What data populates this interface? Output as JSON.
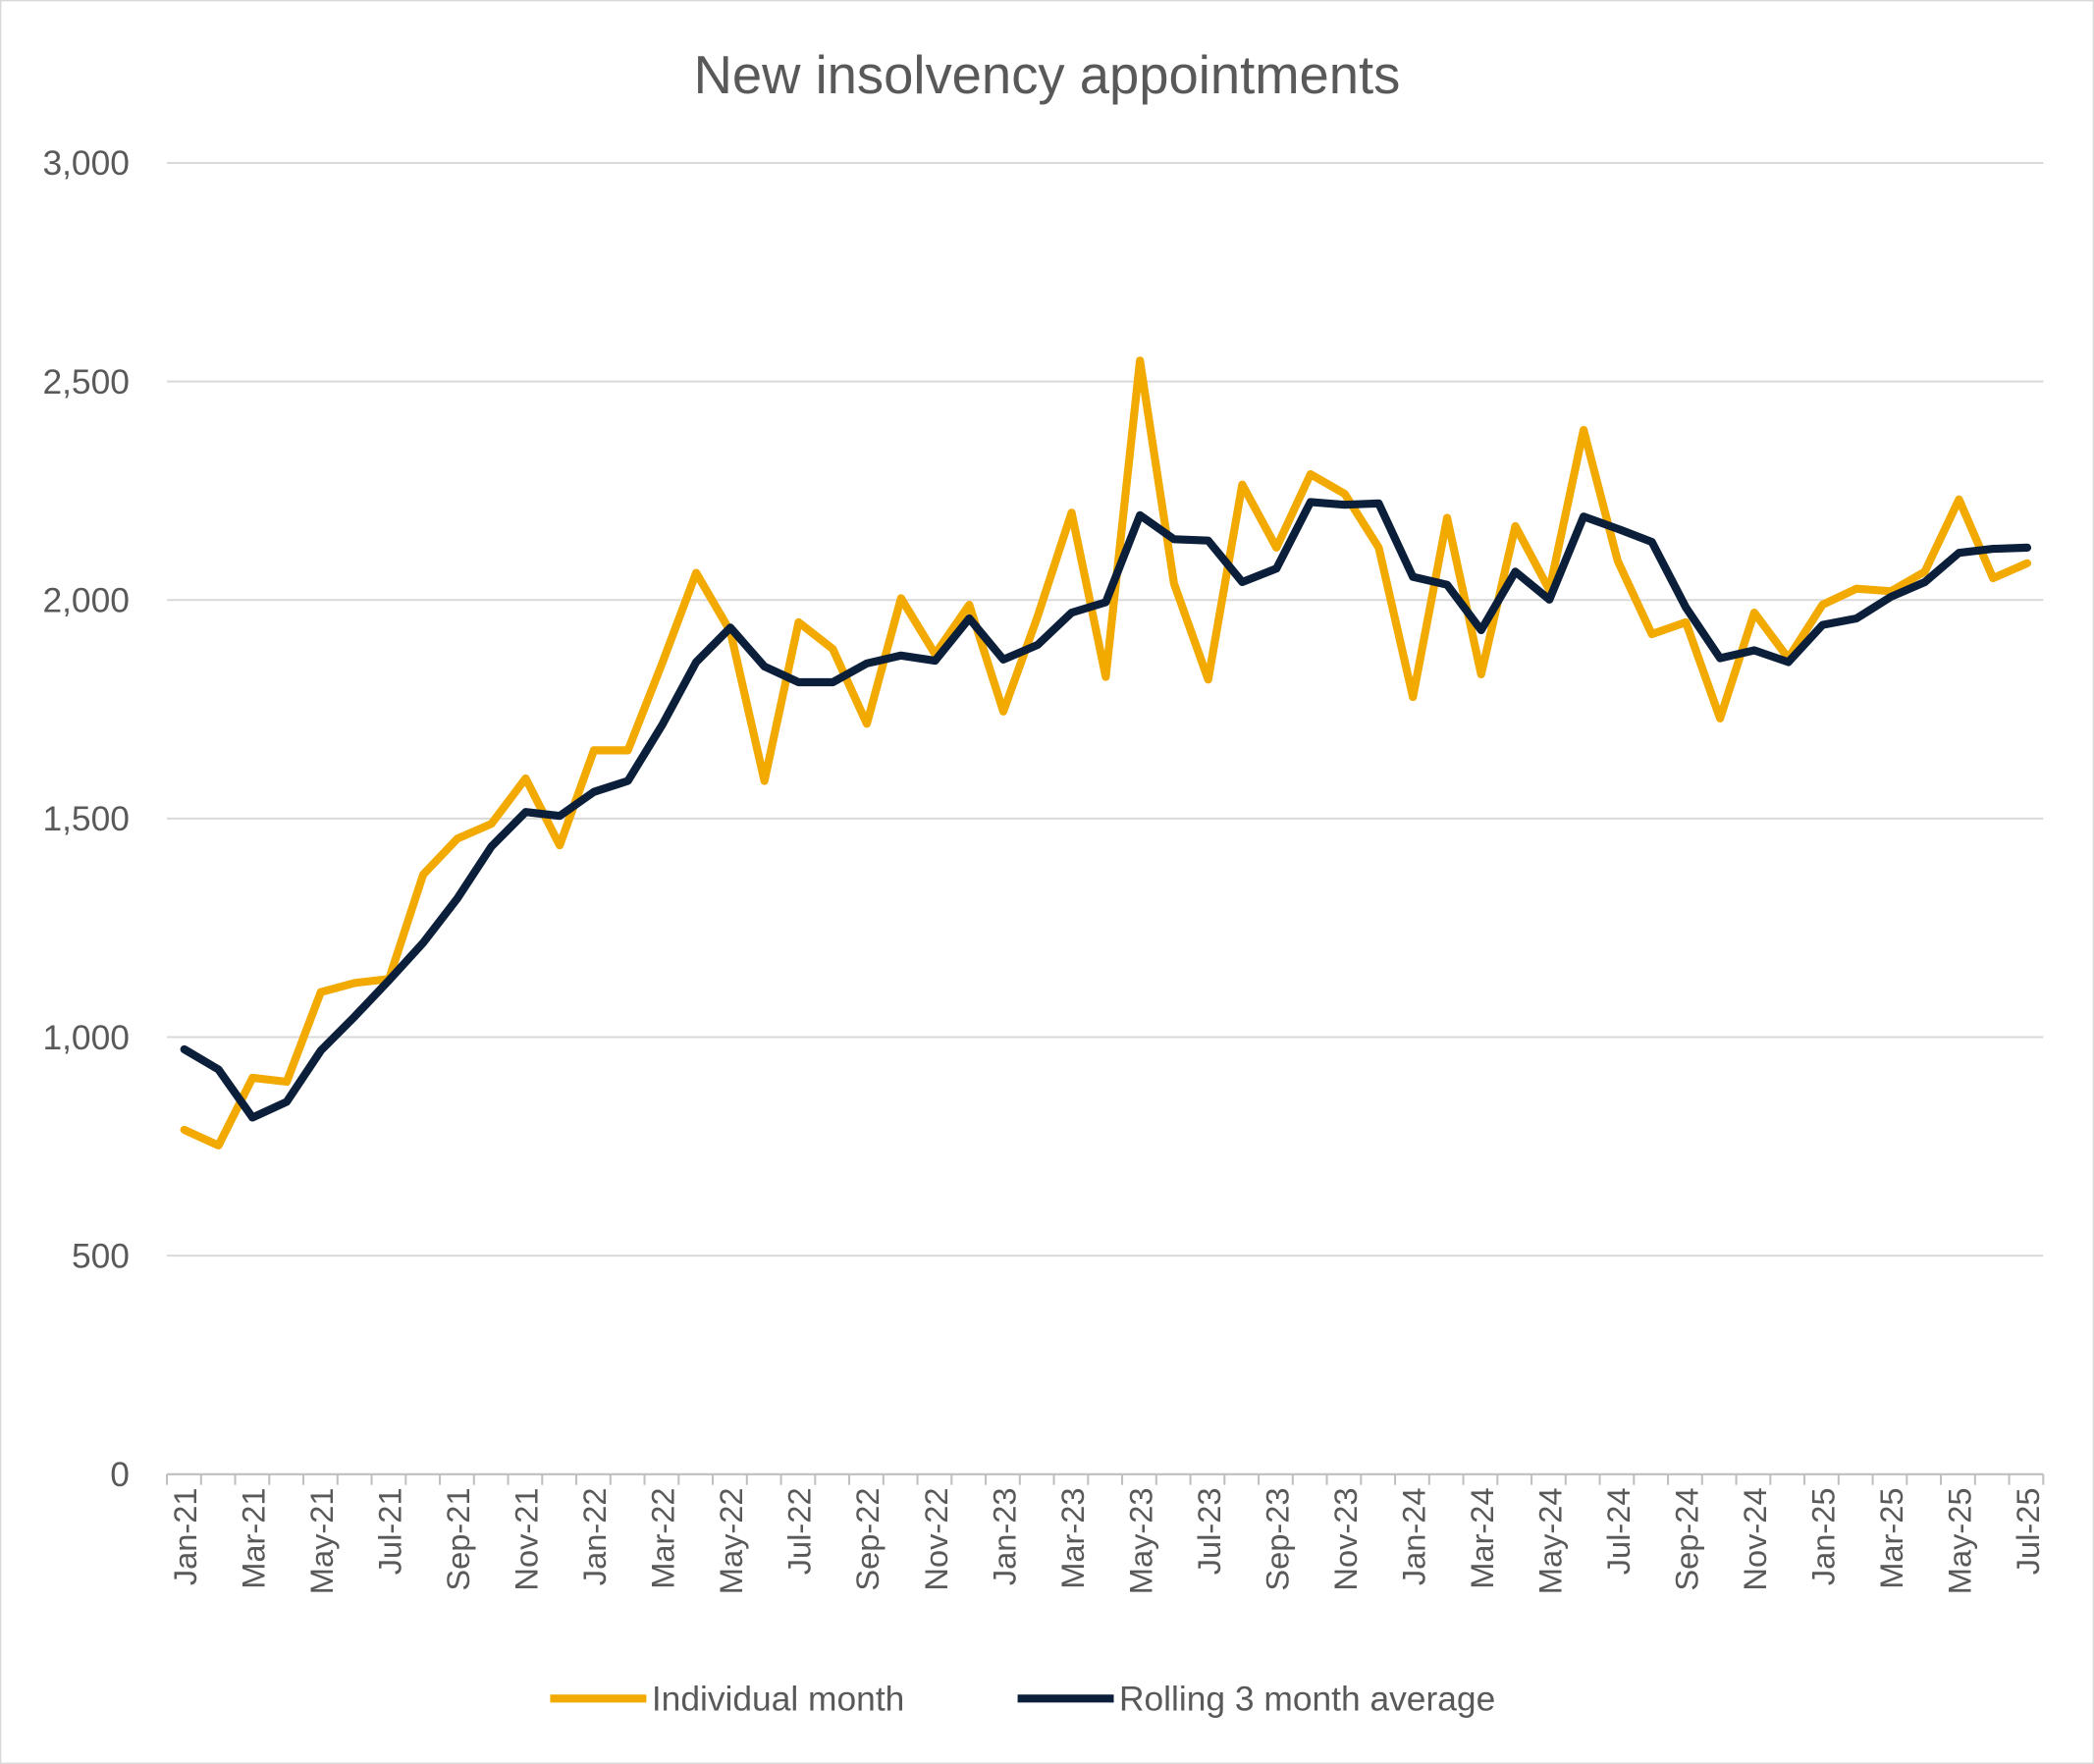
{
  "chart_data": {
    "type": "line",
    "title": "New insolvency appointments",
    "xlabel": "",
    "ylabel": "",
    "ylim": [
      0,
      3000
    ],
    "yticks": [
      0,
      500,
      1000,
      1500,
      2000,
      2500,
      3000
    ],
    "ytick_labels": [
      "0",
      "500",
      "1,000",
      "1,500",
      "2,000",
      "2,500",
      "3,000"
    ],
    "grid": "horizontal",
    "legend_position": "bottom",
    "categories": [
      "Jan-21",
      "Feb-21",
      "Mar-21",
      "Apr-21",
      "May-21",
      "Jun-21",
      "Jul-21",
      "Aug-21",
      "Sep-21",
      "Oct-21",
      "Nov-21",
      "Dec-21",
      "Jan-22",
      "Feb-22",
      "Mar-22",
      "Apr-22",
      "May-22",
      "Jun-22",
      "Jul-22",
      "Aug-22",
      "Sep-22",
      "Oct-22",
      "Nov-22",
      "Dec-22",
      "Jan-23",
      "Feb-23",
      "Mar-23",
      "Apr-23",
      "May-23",
      "Jun-23",
      "Jul-23",
      "Aug-23",
      "Sep-23",
      "Oct-23",
      "Nov-23",
      "Dec-23",
      "Jan-24",
      "Feb-24",
      "Mar-24",
      "Apr-24",
      "May-24",
      "Jun-24",
      "Jul-24",
      "Aug-24",
      "Sep-24",
      "Oct-24",
      "Nov-24",
      "Dec-24",
      "Jan-25",
      "Feb-25",
      "Mar-25",
      "Apr-25",
      "May-25",
      "Jun-25",
      "Jul-25"
    ],
    "xtick_labels": [
      "Jan-21",
      "Mar-21",
      "May-21",
      "Jul-21",
      "Sep-21",
      "Nov-21",
      "Jan-22",
      "Mar-22",
      "May-22",
      "Jul-22",
      "Sep-22",
      "Nov-22",
      "Jan-23",
      "Mar-23",
      "May-23",
      "Jul-23",
      "Sep-23",
      "Nov-23",
      "Jan-24",
      "Mar-24",
      "May-24",
      "Jul-24",
      "Sep-24",
      "Nov-24",
      "Jan-25",
      "Mar-25",
      "May-25",
      "Jul-25"
    ],
    "series": [
      {
        "name": "Individual month",
        "color": "#F2A900",
        "values": [
          788,
          752,
          907,
          898,
          1103,
          1124,
          1133,
          1372,
          1454,
          1488,
          1592,
          1439,
          1656,
          1656,
          1855,
          2062,
          1928,
          1586,
          1949,
          1888,
          1717,
          2004,
          1876,
          1989,
          1745,
          1962,
          2200,
          1824,
          2548,
          2038,
          1818,
          2264,
          2120,
          2288,
          2243,
          2120,
          1778,
          2188,
          1830,
          2169,
          2023,
          2389,
          2090,
          1922,
          1949,
          1729,
          1971,
          1867,
          1989,
          2026,
          2020,
          2065,
          2230,
          2050,
          2084
        ]
      },
      {
        "name": "Rolling 3 month average",
        "color": "#0B1F3A",
        "values": [
          972,
          926,
          816,
          852,
          969,
          1048,
          1130,
          1216,
          1317,
          1436,
          1515,
          1506,
          1561,
          1586,
          1714,
          1858,
          1937,
          1848,
          1812,
          1812,
          1855,
          1873,
          1861,
          1958,
          1864,
          1897,
          1971,
          1995,
          2194,
          2139,
          2136,
          2041,
          2072,
          2224,
          2218,
          2221,
          2053,
          2035,
          1931,
          2065,
          2001,
          2191,
          2163,
          2133,
          1983,
          1867,
          1885,
          1858,
          1943,
          1958,
          2007,
          2041,
          2108,
          2117,
          2120
        ]
      }
    ]
  }
}
